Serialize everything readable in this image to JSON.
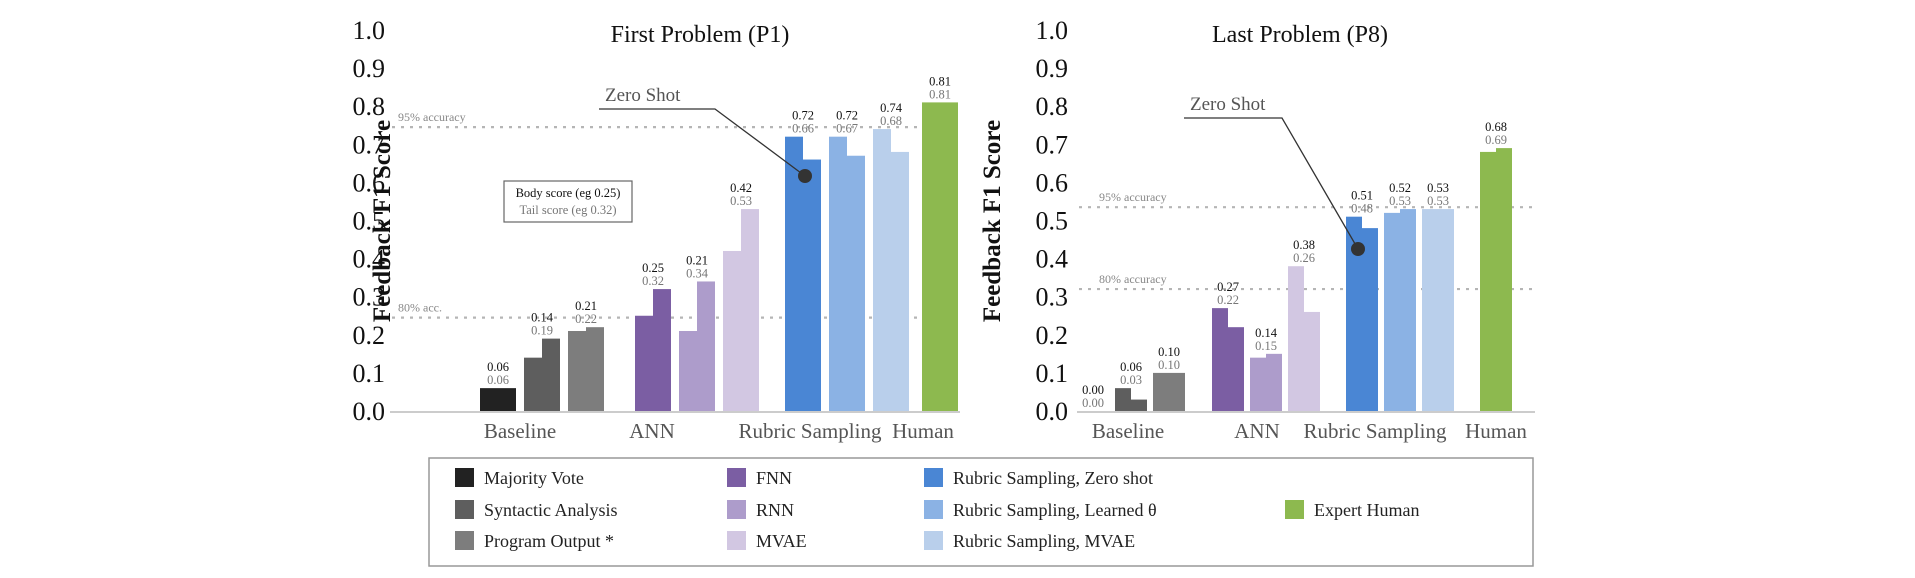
{
  "chart_data": [
    {
      "type": "bar",
      "title": "First Problem (P1)",
      "ylabel": "Feedback F1 Score",
      "ylim": [
        0,
        1.0
      ],
      "yticks": [
        "0.0",
        "0.1",
        "0.2",
        "0.3",
        "0.4",
        "0.5",
        "0.6",
        "0.7",
        "0.8",
        "0.9",
        "1.0"
      ],
      "groups": [
        {
          "name": "Baseline",
          "bars": [
            {
              "series": "Majority Vote",
              "body": 0.06,
              "tail": 0.06
            },
            {
              "series": "Syntactic Analysis",
              "body": 0.14,
              "tail": 0.19
            },
            {
              "series": "Program Output *",
              "body": 0.21,
              "tail": 0.22
            }
          ]
        },
        {
          "name": "ANN",
          "bars": [
            {
              "series": "FNN",
              "body": 0.25,
              "tail": 0.32
            },
            {
              "series": "RNN",
              "body": 0.21,
              "tail": 0.34
            },
            {
              "series": "MVAE",
              "body": 0.42,
              "tail": 0.53
            }
          ]
        },
        {
          "name": "Rubric Sampling",
          "bars": [
            {
              "series": "Rubric Sampling, Zero shot",
              "body": 0.72,
              "tail": 0.66
            },
            {
              "series": "Rubric Sampling, Learned θ",
              "body": 0.72,
              "tail": 0.67
            },
            {
              "series": "Rubric Sampling, MVAE",
              "body": 0.74,
              "tail": 0.68
            }
          ]
        },
        {
          "name": "Human",
          "bars": [
            {
              "series": "Expert Human",
              "body": 0.81,
              "tail": 0.81
            }
          ]
        }
      ],
      "reference_lines": [
        {
          "label": "95% accuracy",
          "value": 0.745
        },
        {
          "label": "80% acc.",
          "value": 0.245
        }
      ],
      "annotations": [
        {
          "text": "Zero Shot",
          "target": "Rubric Sampling, Zero shot"
        }
      ],
      "key_box": {
        "body": "Body score (eg 0.25)",
        "tail": "Tail score (eg 0.32)"
      }
    },
    {
      "type": "bar",
      "title": "Last Problem (P8)",
      "ylabel": "Feedback F1 Score",
      "ylim": [
        0,
        1.0
      ],
      "yticks": [
        "0.0",
        "0.1",
        "0.2",
        "0.3",
        "0.4",
        "0.5",
        "0.6",
        "0.7",
        "0.8",
        "0.9",
        "1.0"
      ],
      "groups": [
        {
          "name": "Baseline",
          "bars": [
            {
              "series": "Majority Vote",
              "body": 0.0,
              "tail": 0.0
            },
            {
              "series": "Syntactic Analysis",
              "body": 0.06,
              "tail": 0.03
            },
            {
              "series": "Program Output *",
              "body": 0.1,
              "tail": 0.1
            }
          ]
        },
        {
          "name": "ANN",
          "bars": [
            {
              "series": "FNN",
              "body": 0.27,
              "tail": 0.22
            },
            {
              "series": "RNN",
              "body": 0.14,
              "tail": 0.15
            },
            {
              "series": "MVAE",
              "body": 0.38,
              "tail": 0.26
            }
          ]
        },
        {
          "name": "Rubric Sampling",
          "bars": [
            {
              "series": "Rubric Sampling, Zero shot",
              "body": 0.51,
              "tail": 0.48
            },
            {
              "series": "Rubric Sampling, Learned θ",
              "body": 0.52,
              "tail": 0.53
            },
            {
              "series": "Rubric Sampling, MVAE",
              "body": 0.53,
              "tail": 0.53
            }
          ]
        },
        {
          "name": "Human",
          "bars": [
            {
              "series": "Expert Human",
              "body": 0.68,
              "tail": 0.69
            }
          ]
        }
      ],
      "reference_lines": [
        {
          "label": "95% accuracy",
          "value": 0.535
        },
        {
          "label": "80% accuracy",
          "value": 0.32
        }
      ],
      "annotations": [
        {
          "text": "Zero Shot",
          "target": "Rubric Sampling, Zero shot"
        }
      ]
    }
  ],
  "legend": [
    {
      "label": "Majority Vote",
      "color": "#222222"
    },
    {
      "label": "Syntactic Analysis",
      "color": "#5e5e5e"
    },
    {
      "label": "Program Output *",
      "color": "#7d7d7d"
    },
    {
      "label": "FNN",
      "color": "#7b5ea3"
    },
    {
      "label": "RNN",
      "color": "#ad9ccb"
    },
    {
      "label": "MVAE",
      "color": "#d2c7e2"
    },
    {
      "label": "Rubric Sampling, Zero shot",
      "color": "#4a86d4"
    },
    {
      "label": "Rubric Sampling, Learned θ",
      "color": "#8bb2e4"
    },
    {
      "label": "Rubric Sampling, MVAE",
      "color": "#b9cfeb"
    },
    {
      "label": "Expert Human",
      "color": "#8db94f"
    }
  ],
  "colors": {
    "Majority Vote": "#222222",
    "Syntactic Analysis": "#5e5e5e",
    "Program Output *": "#7d7d7d",
    "FNN": "#7b5ea3",
    "RNN": "#ad9ccb",
    "MVAE": "#d2c7e2",
    "Rubric Sampling, Zero shot": "#4a86d4",
    "Rubric Sampling, Learned θ": "#8bb2e4",
    "Rubric Sampling, MVAE": "#b9cfeb",
    "Expert Human": "#8db94f",
    "reference": "#b5b5b5",
    "axis": "#bbbbbb"
  }
}
